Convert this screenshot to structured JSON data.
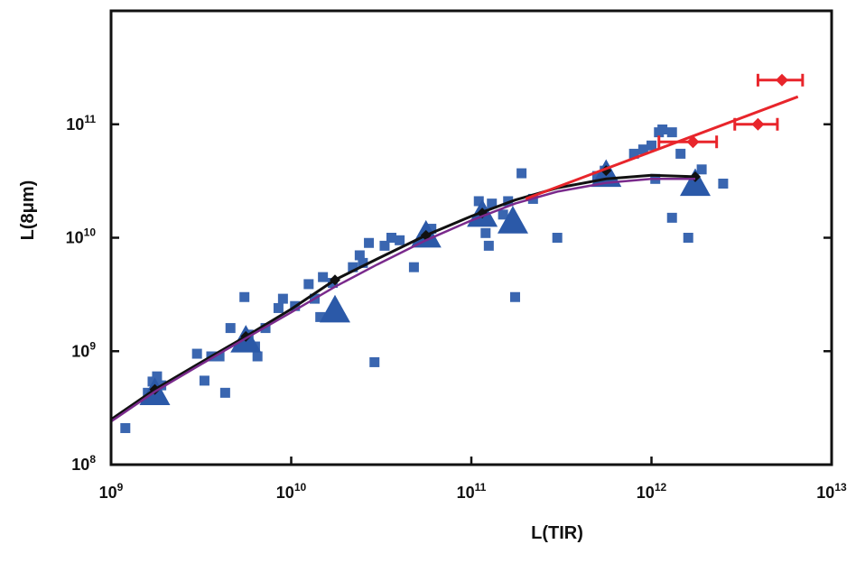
{
  "chart_data": {
    "type": "scatter",
    "title": "",
    "xlabel": "L(TIR)",
    "ylabel": "L(8μm)",
    "xscale": "log",
    "yscale": "log",
    "xlim": [
      1000000000.0,
      10000000000000.0
    ],
    "ylim": [
      100000000.0,
      1000000000000.0
    ],
    "grid": false,
    "legend": "none",
    "x_ticks": [
      {
        "base": "10",
        "exp": "9",
        "value": 1000000000.0
      },
      {
        "base": "10",
        "exp": "10",
        "value": 10000000000.0
      },
      {
        "base": "10",
        "exp": "11",
        "value": 100000000000.0
      },
      {
        "base": "10",
        "exp": "12",
        "value": 1000000000000.0
      },
      {
        "base": "10",
        "exp": "13",
        "value": 10000000000000.0
      }
    ],
    "y_ticks": [
      {
        "base": "10",
        "exp": "8",
        "value": 100000000.0
      },
      {
        "base": "10",
        "exp": "9",
        "value": 1000000000.0
      },
      {
        "base": "10",
        "exp": "10",
        "value": 10000000000.0
      },
      {
        "base": "10",
        "exp": "11",
        "value": 100000000000.0
      }
    ],
    "colors": {
      "squares": "#3a66b0",
      "triangles": "#2b59a8",
      "black_curve": "#111111",
      "purple_curve": "#7a2a8c",
      "red": "#e8252b"
    },
    "series": [
      {
        "kind": "square-markers",
        "points": [
          [
            1200000000.0,
            210000000.0
          ],
          [
            1600000000.0,
            430000000.0
          ],
          [
            1700000000.0,
            540000000.0
          ],
          [
            1800000000.0,
            600000000.0
          ],
          [
            1900000000.0,
            500000000.0
          ],
          [
            3000000000.0,
            950000000.0
          ],
          [
            3300000000.0,
            550000000.0
          ],
          [
            3600000000.0,
            900000000.0
          ],
          [
            4000000000.0,
            900000000.0
          ],
          [
            4300000000.0,
            430000000.0
          ],
          [
            4600000000.0,
            1600000000.0
          ],
          [
            5500000000.0,
            3000000000.0
          ],
          [
            5800000000.0,
            1400000000.0
          ],
          [
            6300000000.0,
            1100000000.0
          ],
          [
            6500000000.0,
            900000000.0
          ],
          [
            7200000000.0,
            1600000000.0
          ],
          [
            8500000000.0,
            2400000000.0
          ],
          [
            9000000000.0,
            2900000000.0
          ],
          [
            10500000000.0,
            2500000000.0
          ],
          [
            12500000000.0,
            3900000000.0
          ],
          [
            13500000000.0,
            2900000000.0
          ],
          [
            14500000000.0,
            2000000000.0
          ],
          [
            15000000000.0,
            4500000000.0
          ],
          [
            17000000000.0,
            4000000000.0
          ],
          [
            22000000000.0,
            5500000000.0
          ],
          [
            24000000000.0,
            7000000000.0
          ],
          [
            25000000000.0,
            6000000000.0
          ],
          [
            27000000000.0,
            9000000000.0
          ],
          [
            29000000000.0,
            800000000.0
          ],
          [
            33000000000.0,
            8500000000.0
          ],
          [
            36000000000.0,
            10000000000.0
          ],
          [
            40000000000.0,
            9500000000.0
          ],
          [
            48000000000.0,
            5500000000.0
          ],
          [
            60000000000.0,
            12000000000.0
          ],
          [
            110000000000.0,
            21000000000.0
          ],
          [
            120000000000.0,
            11000000000.0
          ],
          [
            125000000000.0,
            8500000000.0
          ],
          [
            130000000000.0,
            20000000000.0
          ],
          [
            150000000000.0,
            16000000000.0
          ],
          [
            160000000000.0,
            21000000000.0
          ],
          [
            175000000000.0,
            3000000000.0
          ],
          [
            190000000000.0,
            37000000000.0
          ],
          [
            220000000000.0,
            22000000000.0
          ],
          [
            300000000000.0,
            10000000000.0
          ],
          [
            500000000000.0,
            35000000000.0
          ],
          [
            550000000000.0,
            39000000000.0
          ],
          [
            800000000000.0,
            55000000000.0
          ],
          [
            900000000000.0,
            60000000000.0
          ],
          [
            1000000000000.0,
            65000000000.0
          ],
          [
            1050000000000.0,
            33000000000.0
          ],
          [
            1100000000000.0,
            85000000000.0
          ],
          [
            1150000000000.0,
            90000000000.0
          ],
          [
            1300000000000.0,
            85000000000.0
          ],
          [
            1300000000000.0,
            15000000000.0
          ],
          [
            1450000000000.0,
            55000000000.0
          ],
          [
            1600000000000.0,
            10000000000.0
          ],
          [
            1900000000000.0,
            40000000000.0
          ],
          [
            2500000000000.0,
            30000000000.0
          ]
        ]
      },
      {
        "kind": "triangle-markers",
        "points": [
          [
            1750000000.0,
            430000000.0
          ],
          [
            5600000000.0,
            1250000000.0
          ],
          [
            17500000000.0,
            2300000000.0
          ],
          [
            56000000000.0,
            10500000000.0
          ],
          [
            115000000000.0,
            16000000000.0
          ],
          [
            170000000000.0,
            14000000000.0
          ],
          [
            560000000000.0,
            36000000000.0
          ],
          [
            1750000000000.0,
            30000000000.0
          ]
        ]
      },
      {
        "kind": "black-curve",
        "points": [
          [
            1000000000.0,
            250000000.0
          ],
          [
            1750000000.0,
            460000000.0
          ],
          [
            3000000000.0,
            760000000.0
          ],
          [
            5600000000.0,
            1350000000.0
          ],
          [
            10000000000.0,
            2350000000.0
          ],
          [
            17500000000.0,
            4250000000.0
          ],
          [
            30000000000.0,
            6500000000.0
          ],
          [
            56000000000.0,
            10500000000.0
          ],
          [
            100000000000.0,
            15500000000.0
          ],
          [
            175000000000.0,
            21500000000.0
          ],
          [
            300000000000.0,
            27500000000.0
          ],
          [
            560000000000.0,
            33000000000.0
          ],
          [
            1000000000000.0,
            35500000000.0
          ],
          [
            1750000000000.0,
            34500000000.0
          ]
        ],
        "marker_points": [
          [
            1750000000.0,
            460000000.0
          ],
          [
            5600000000.0,
            1350000000.0
          ],
          [
            17500000000.0,
            4250000000.0
          ],
          [
            56000000000.0,
            10500000000.0
          ],
          [
            115000000000.0,
            16500000000.0
          ],
          [
            560000000000.0,
            39000000000.0
          ],
          [
            1750000000000.0,
            34500000000.0
          ]
        ]
      },
      {
        "kind": "purple-curve",
        "points": [
          [
            1000000000.0,
            240000000.0
          ],
          [
            1750000000.0,
            440000000.0
          ],
          [
            3000000000.0,
            730000000.0
          ],
          [
            5600000000.0,
            1300000000.0
          ],
          [
            10000000000.0,
            2200000000.0
          ],
          [
            17500000000.0,
            3700000000.0
          ],
          [
            30000000000.0,
            5800000000.0
          ],
          [
            56000000000.0,
            9500000000.0
          ],
          [
            100000000000.0,
            14200000000.0
          ],
          [
            175000000000.0,
            20000000000.0
          ],
          [
            300000000000.0,
            25500000000.0
          ],
          [
            560000000000.0,
            30500000000.0
          ],
          [
            1000000000000.0,
            33000000000.0
          ],
          [
            1750000000000.0,
            33000000000.0
          ]
        ]
      },
      {
        "kind": "red-fit-line",
        "points": [
          [
            200000000000.0,
            22000000000.0
          ],
          [
            6500000000000.0,
            175000000000.0
          ]
        ]
      },
      {
        "kind": "red-points-with-xerror",
        "points": [
          {
            "x": 1700000000000.0,
            "y": 70000000000.0,
            "xerr": [
              1100000000000.0,
              2300000000000.0
            ]
          },
          {
            "x": 3900000000000.0,
            "y": 100000000000.0,
            "xerr": [
              2900000000000.0,
              5000000000000.0
            ]
          },
          {
            "x": 5300000000000.0,
            "y": 245000000000.0,
            "xerr": [
              3900000000000.0,
              6900000000000.0
            ]
          }
        ]
      }
    ]
  }
}
